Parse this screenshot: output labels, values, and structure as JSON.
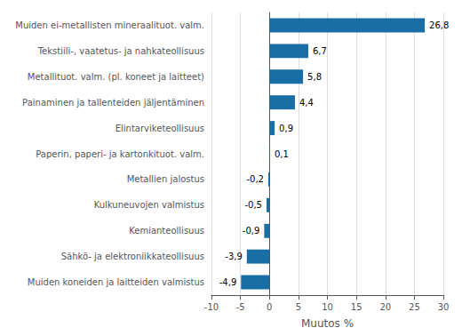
{
  "chart_data": {
    "type": "bar",
    "orientation": "horizontal",
    "xlabel": "Muutos %",
    "categories": [
      "Muiden koneiden ja laitteiden valmistus",
      "Sähkö- ja elektroniikkateollisuus",
      "Kemianteollisuus",
      "Kulkuneuvojen valmistus",
      "Metallien jalostus",
      "Paperin, paperi- ja kartonkituot. valm.",
      "Elintarviketeollisuus",
      "Painaminen ja tallenteiden jäljentäminen",
      "Metallituot. valm. (pl. koneet ja laitteet)",
      "Tekstiili-, vaatetus- ja nahkateollisuus",
      "Muiden ei-metallisten mineraalituot. valm."
    ],
    "values": [
      -4.9,
      -3.9,
      -0.9,
      -0.5,
      -0.2,
      0.1,
      0.9,
      4.4,
      5.8,
      6.7,
      26.8
    ],
    "value_labels": [
      "-4,9",
      "-3,9",
      "-0,9",
      "-0,5",
      "-0,2",
      "0,1",
      "0,9",
      "4,4",
      "5,8",
      "6,7",
      "26,8"
    ],
    "color": "#1a6ea6",
    "xlim": [
      -10,
      30
    ],
    "xticks": [
      -10,
      -5,
      0,
      5,
      10,
      15,
      20,
      25,
      30
    ],
    "grid": true,
    "data_labels": true
  }
}
